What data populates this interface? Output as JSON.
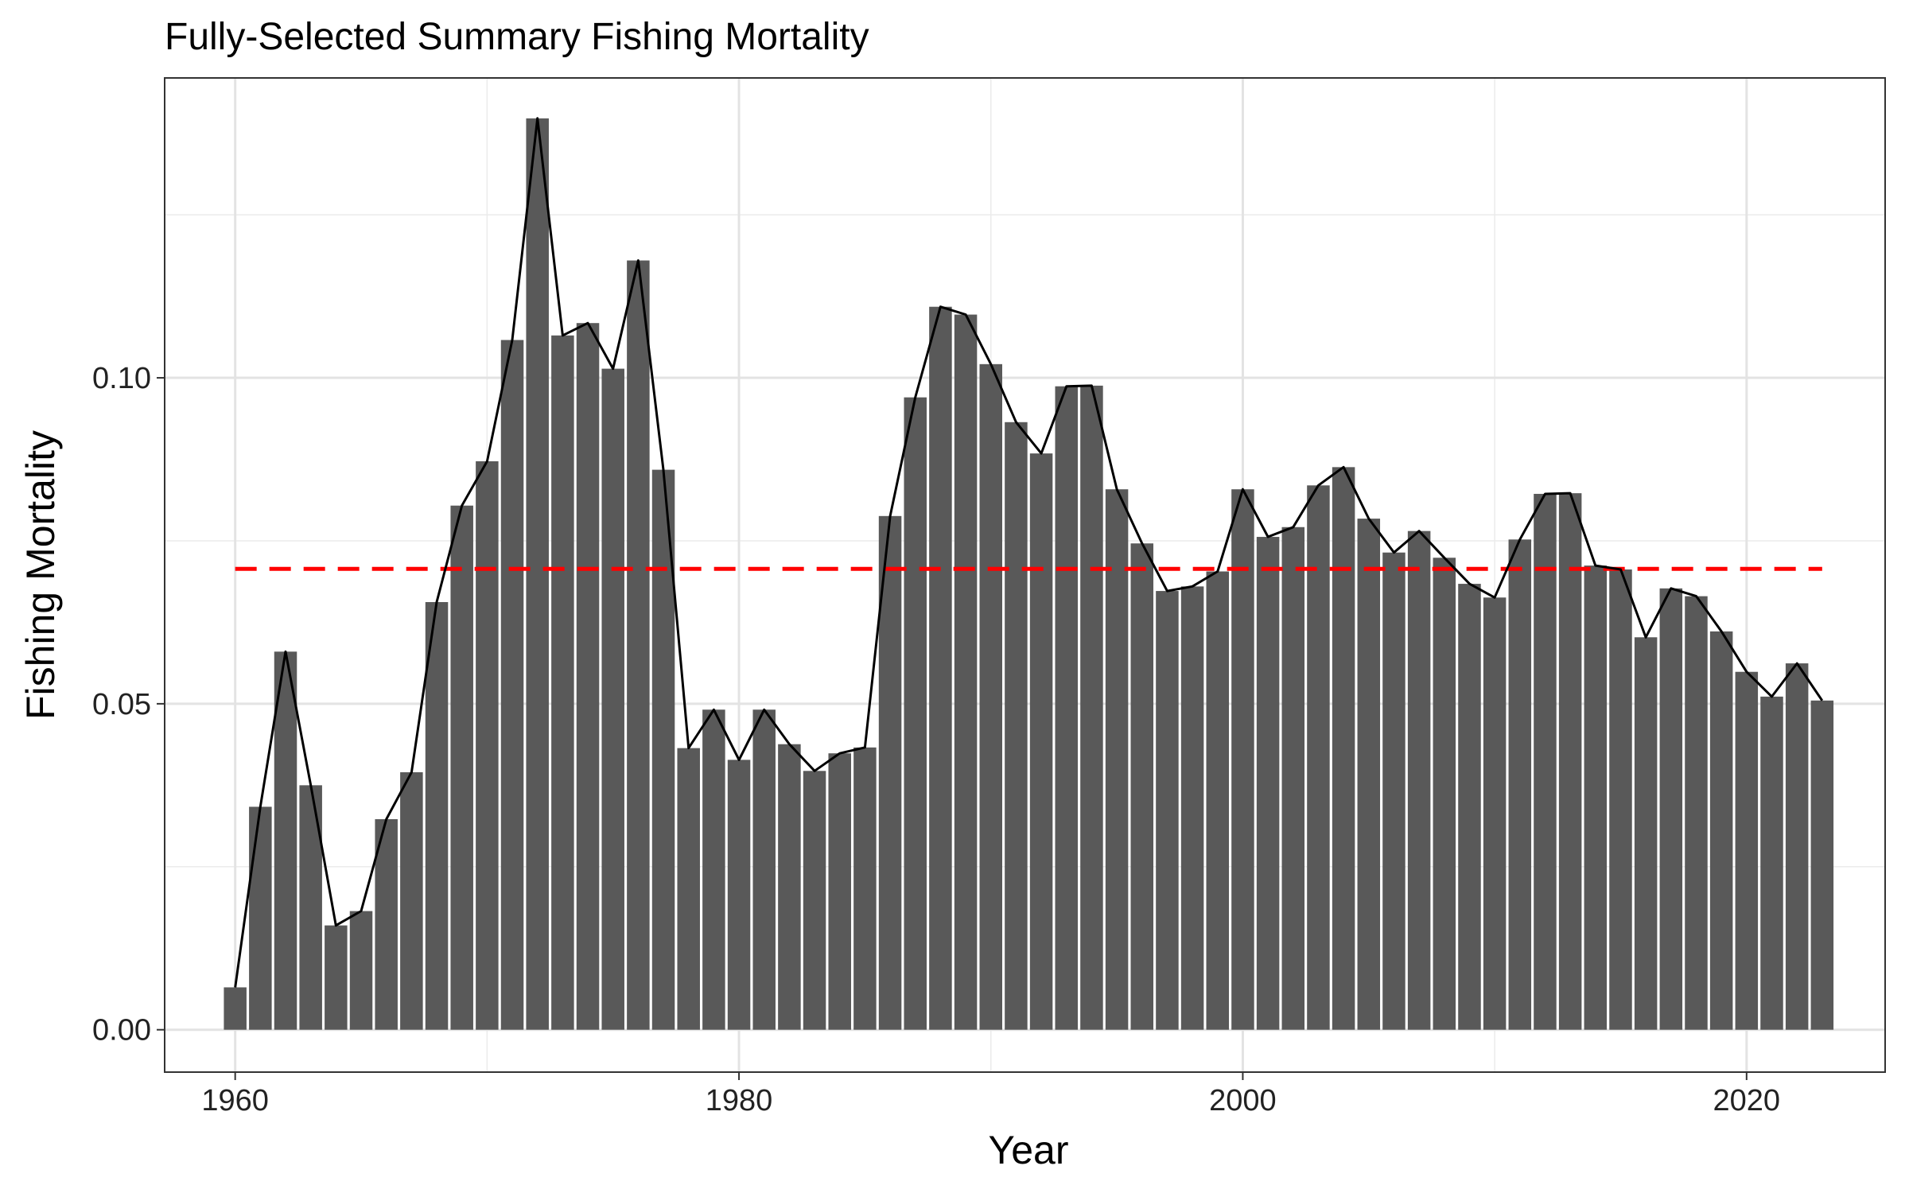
{
  "chart_data": {
    "type": "bar",
    "title": "Fully-Selected Summary Fishing Mortality",
    "xlabel": "Year",
    "ylabel": "Fishing Mortality",
    "xlim": [
      1957.2,
      2025.5
    ],
    "ylim": [
      -0.0065,
      0.146
    ],
    "x_ticks": [
      1960,
      1980,
      2000,
      2020
    ],
    "x_tick_labels": [
      "1960",
      "1980",
      "2000",
      "2020"
    ],
    "y_ticks": [
      0.0,
      0.05,
      0.1
    ],
    "y_tick_labels": [
      "0.00",
      "0.05",
      "0.10"
    ],
    "grid": true,
    "bar_color": "#595959",
    "line_color": "#000000",
    "reference_line": {
      "value": 0.0707,
      "color": "#ff0000",
      "style": "dashed"
    },
    "x": [
      1960,
      1961,
      1962,
      1963,
      1964,
      1965,
      1966,
      1967,
      1968,
      1969,
      1970,
      1971,
      1972,
      1973,
      1974,
      1975,
      1976,
      1977,
      1978,
      1979,
      1980,
      1981,
      1982,
      1983,
      1984,
      1985,
      1986,
      1987,
      1988,
      1989,
      1990,
      1991,
      1992,
      1993,
      1994,
      1995,
      1996,
      1997,
      1998,
      1999,
      2000,
      2001,
      2002,
      2003,
      2004,
      2005,
      2006,
      2007,
      2008,
      2009,
      2010,
      2011,
      2012,
      2013,
      2014,
      2015,
      2016,
      2017,
      2018,
      2019,
      2020,
      2021,
      2022,
      2023
    ],
    "values": [
      0.0065,
      0.0342,
      0.058,
      0.0375,
      0.016,
      0.0182,
      0.0323,
      0.0395,
      0.0656,
      0.0804,
      0.0872,
      0.1058,
      0.1398,
      0.1065,
      0.1084,
      0.1014,
      0.118,
      0.0859,
      0.0432,
      0.0491,
      0.0414,
      0.0491,
      0.0438,
      0.0397,
      0.0424,
      0.0433,
      0.0788,
      0.097,
      0.1109,
      0.1097,
      0.1021,
      0.0932,
      0.0884,
      0.0987,
      0.0988,
      0.0829,
      0.0746,
      0.0673,
      0.068,
      0.0703,
      0.0829,
      0.0756,
      0.0771,
      0.0835,
      0.0863,
      0.0784,
      0.0732,
      0.0765,
      0.0724,
      0.0684,
      0.0663,
      0.0752,
      0.0822,
      0.0823,
      0.0712,
      0.0706,
      0.0602,
      0.0677,
      0.0665,
      0.0611,
      0.0549,
      0.0511,
      0.0562,
      0.0505
    ]
  }
}
